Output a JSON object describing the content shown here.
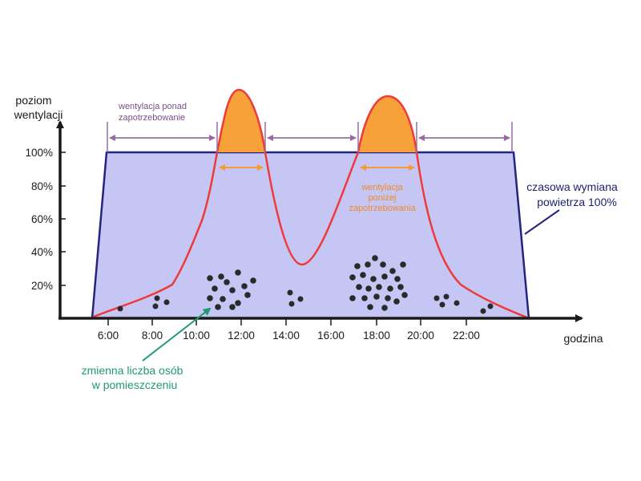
{
  "axes": {
    "y_title_line1": "poziom",
    "y_title_line2": "wentylacji",
    "x_title": "godzina",
    "y_ticks": [
      "100%",
      "80%",
      "60%",
      "40%",
      "20%"
    ],
    "x_ticks": [
      "6:00",
      "8:00",
      "10:00",
      "12:00",
      "14:00",
      "16:00",
      "18:00",
      "20:00",
      "22:00"
    ]
  },
  "annotations": {
    "over_line1": "wentylacja ponad",
    "over_line2": "zapotrzebowanie",
    "under_line1": "wentylacja",
    "under_line2": "poniżej",
    "under_line3": "zapotrzebowania",
    "people_line1": "zmienna liczba osób",
    "people_line2": "w pomieszczeniu",
    "fixed_line1": "czasowa wymiana",
    "fixed_line2": "powietrza 100%"
  },
  "colors": {
    "fixed_fill": "#c6c6f4",
    "fixed_stroke": "#242480",
    "demand_curve": "#ee3a3a",
    "excess_fill": "#f7a13b",
    "over_arrow": "#9a6aa8",
    "under_arrow": "#f79a32",
    "people_dot": "#2a2a2a",
    "people_arrow": "#1f9a6e",
    "axis": "#1a1a1a"
  }
}
